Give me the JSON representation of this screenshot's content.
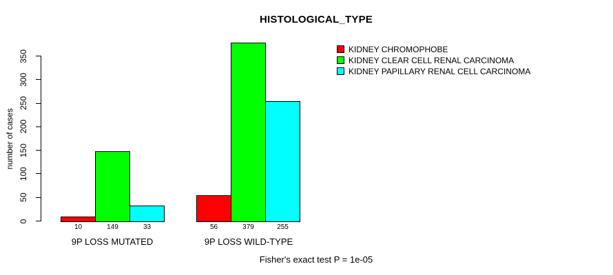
{
  "figure": {
    "background": "#ffffff",
    "text_color": "#000000"
  },
  "chart_data": {
    "type": "bar",
    "title": "HISTOLOGICAL_TYPE",
    "xlabel": "",
    "ylabel": "number of cases",
    "categories": [
      "9P LOSS MUTATED",
      "9P LOSS WILD-TYPE"
    ],
    "series": [
      {
        "name": "KIDNEY CHROMOPHOBE",
        "color": "#ff0000",
        "values": [
          10,
          56
        ]
      },
      {
        "name": "KIDNEY CLEAR CELL RENAL CARCINOMA",
        "color": "#00ff00",
        "values": [
          149,
          379
        ]
      },
      {
        "name": "KIDNEY PAPILLARY RENAL CELL CARCINOMA",
        "color": "#00ffff",
        "values": [
          33,
          255
        ]
      }
    ],
    "bar_value_labels": [
      [
        10,
        149,
        33
      ],
      [
        56,
        379,
        255
      ]
    ],
    "yticks": [
      0,
      50,
      100,
      150,
      200,
      250,
      300,
      350
    ],
    "ylim": [
      0,
      380
    ],
    "grid": false,
    "legend_position": "top-right",
    "annotation": "Fisher's exact test P = 1e-05"
  }
}
